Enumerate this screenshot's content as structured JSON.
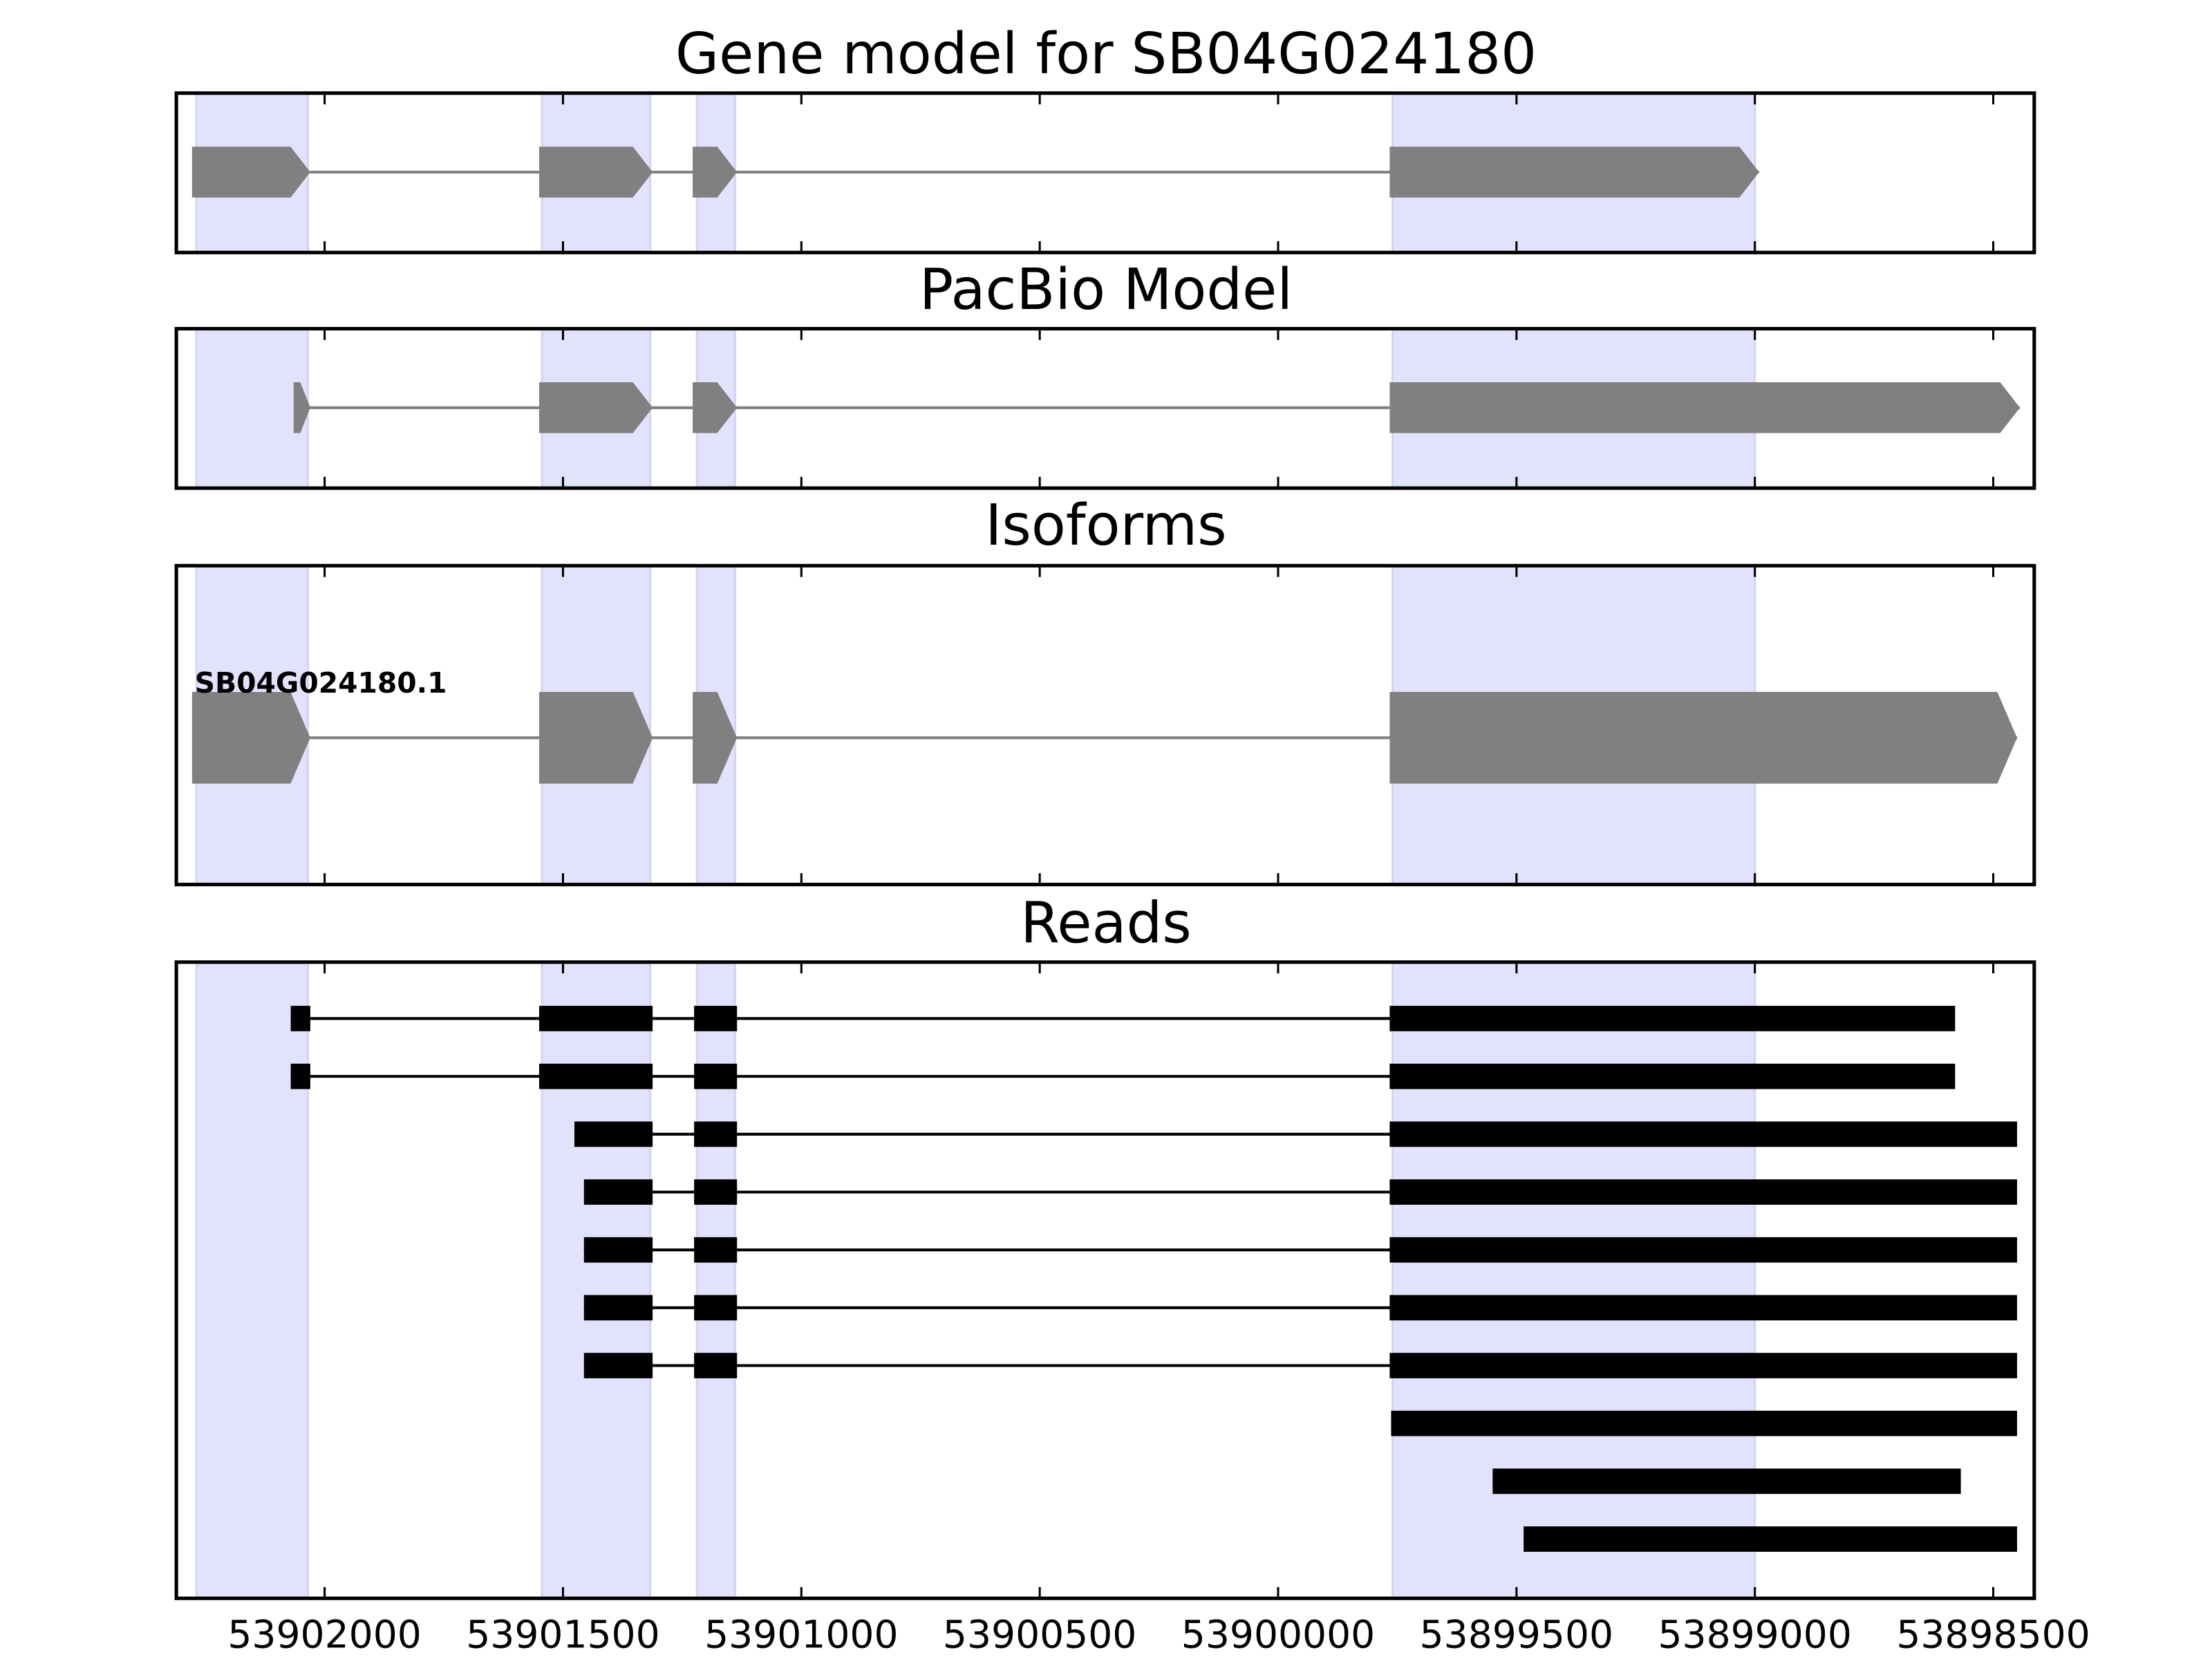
{
  "chart_data": {
    "type": "gene-track",
    "x_axis": {
      "reversed": true,
      "xlim": [
        53902311,
        53898414
      ],
      "ticks": [
        53902000,
        53901500,
        53901000,
        53900500,
        53900000,
        53899500,
        53899000,
        53898500
      ],
      "tick_labels": [
        "53902000",
        "53901500",
        "53901000",
        "53900500",
        "53900000",
        "53899500",
        "53899000",
        "53898500"
      ]
    },
    "highlight_regions": [
      [
        53902269,
        53902035
      ],
      [
        53901544,
        53901317
      ],
      [
        53901219,
        53901139
      ],
      [
        53899760,
        53899000
      ]
    ],
    "colors": {
      "highlight": "#e2e2fd",
      "model": "#808080",
      "read": "#000000",
      "intron": "#808080"
    },
    "panels": [
      {
        "title": "Gene model for SB04G024180",
        "kind": "model",
        "exons": [
          [
            53902278,
            53902030
          ],
          [
            53901550,
            53901312
          ],
          [
            53901228,
            53901135
          ],
          [
            53899766,
            53898991
          ]
        ]
      },
      {
        "title": "PacBio Model",
        "kind": "model",
        "exons": [
          [
            53902065,
            53902030
          ],
          [
            53901550,
            53901312
          ],
          [
            53901228,
            53901135
          ],
          [
            53899766,
            53898444
          ]
        ]
      },
      {
        "title": "Isoforms",
        "kind": "isoform",
        "isoforms": [
          {
            "name": "SB04G024180.1",
            "exons": [
              [
                53902278,
                53902030
              ],
              [
                53901550,
                53901312
              ],
              [
                53901228,
                53901135
              ],
              [
                53899766,
                53898450
              ]
            ]
          }
        ]
      },
      {
        "title": "Reads",
        "kind": "reads",
        "reads": [
          [
            [
              53902071,
              53902030
            ],
            [
              53901550,
              53901312
            ],
            [
              53901225,
              53901135
            ],
            [
              53899766,
              53898580
            ]
          ],
          [
            [
              53902071,
              53902030
            ],
            [
              53901550,
              53901312
            ],
            [
              53901225,
              53901135
            ],
            [
              53899766,
              53898580
            ]
          ],
          [
            [
              53901476,
              53901312
            ],
            [
              53901225,
              53901135
            ],
            [
              53899766,
              53898450
            ]
          ],
          [
            [
              53901456,
              53901312
            ],
            [
              53901225,
              53901135
            ],
            [
              53899766,
              53898450
            ]
          ],
          [
            [
              53901456,
              53901312
            ],
            [
              53901225,
              53901135
            ],
            [
              53899766,
              53898450
            ]
          ],
          [
            [
              53901456,
              53901312
            ],
            [
              53901225,
              53901135
            ],
            [
              53899766,
              53898450
            ]
          ],
          [
            [
              53901456,
              53901312
            ],
            [
              53901225,
              53901135
            ],
            [
              53899766,
              53898450
            ]
          ],
          [
            [
              53899763,
              53898450
            ]
          ],
          [
            [
              53899550,
              53898568
            ]
          ],
          [
            [
              53899485,
              53898450
            ]
          ]
        ]
      }
    ]
  }
}
